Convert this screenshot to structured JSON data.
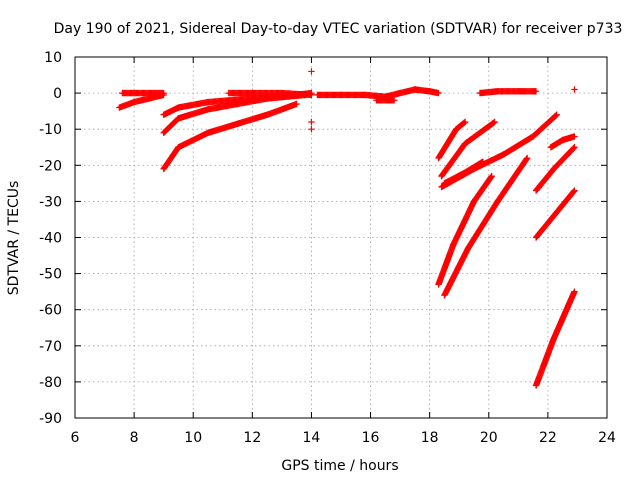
{
  "chart_data": {
    "type": "scatter",
    "title": "Day 190 of 2021, Sidereal Day-to-day VTEC variation (SDTVAR) for receiver p733",
    "xlabel": "GPS time / hours",
    "ylabel": "SDTVAR / TECUs",
    "xlim": [
      6,
      24
    ],
    "ylim": [
      -90,
      10
    ],
    "xticks": [
      6,
      8,
      10,
      12,
      14,
      16,
      18,
      20,
      22,
      24
    ],
    "yticks": [
      10,
      0,
      -10,
      -20,
      -30,
      -40,
      -50,
      -60,
      -70,
      -80,
      -90
    ],
    "grid": true,
    "marker": "plus",
    "color": "#ff0000",
    "segments": [
      [
        [
          7.5,
          -4
        ],
        [
          8.0,
          -2.5
        ],
        [
          8.5,
          -1.5
        ],
        [
          9.0,
          -0.5
        ]
      ],
      [
        [
          7.6,
          0
        ],
        [
          8.3,
          0
        ],
        [
          8.7,
          0
        ],
        [
          9.0,
          0
        ]
      ],
      [
        [
          9.0,
          -6
        ],
        [
          9.5,
          -4
        ],
        [
          10.5,
          -2.5
        ],
        [
          12.0,
          -1.5
        ],
        [
          13.5,
          -0.5
        ],
        [
          14.0,
          0
        ]
      ],
      [
        [
          9.0,
          -11
        ],
        [
          9.5,
          -7
        ],
        [
          10.5,
          -4.5
        ],
        [
          11.5,
          -3
        ],
        [
          12.5,
          -1.5
        ],
        [
          13.8,
          -0.5
        ]
      ],
      [
        [
          9.0,
          -21
        ],
        [
          9.5,
          -15
        ],
        [
          10.5,
          -11
        ],
        [
          11.5,
          -8.5
        ],
        [
          12.5,
          -6
        ],
        [
          13.5,
          -3
        ]
      ],
      [
        [
          11.2,
          0
        ],
        [
          12.0,
          0
        ],
        [
          13.0,
          0
        ],
        [
          14.0,
          -0.5
        ]
      ],
      [
        [
          14.2,
          -0.5
        ],
        [
          15.0,
          -0.5
        ],
        [
          15.8,
          -0.5
        ],
        [
          16.5,
          -1
        ],
        [
          17.0,
          0
        ],
        [
          17.5,
          1
        ],
        [
          18.0,
          0.5
        ],
        [
          18.3,
          0
        ]
      ],
      [
        [
          16.2,
          -2
        ],
        [
          16.8,
          -2
        ]
      ],
      [
        [
          19.7,
          0
        ],
        [
          20.3,
          0.5
        ],
        [
          21.0,
          0.5
        ],
        [
          21.6,
          0.5
        ]
      ],
      [
        [
          18.3,
          -53
        ],
        [
          18.8,
          -42
        ],
        [
          19.5,
          -30
        ],
        [
          20.1,
          -23
        ]
      ],
      [
        [
          18.5,
          -56
        ],
        [
          19.3,
          -43
        ],
        [
          20.3,
          -30
        ],
        [
          21.3,
          -18
        ]
      ],
      [
        [
          18.3,
          -18
        ],
        [
          18.9,
          -10
        ],
        [
          19.2,
          -8
        ]
      ],
      [
        [
          18.4,
          -23
        ],
        [
          19.2,
          -14
        ],
        [
          20.2,
          -8
        ]
      ],
      [
        [
          18.4,
          -26
        ],
        [
          19.5,
          -21
        ],
        [
          20.5,
          -17
        ],
        [
          21.5,
          -12
        ],
        [
          22.3,
          -6
        ]
      ],
      [
        [
          18.5,
          -25
        ],
        [
          19.2,
          -22
        ],
        [
          19.8,
          -19
        ]
      ],
      [
        [
          21.6,
          -40
        ],
        [
          22.2,
          -34
        ],
        [
          22.9,
          -27
        ]
      ],
      [
        [
          21.6,
          -27
        ],
        [
          22.2,
          -21
        ],
        [
          22.9,
          -15
        ]
      ],
      [
        [
          22.1,
          -15
        ],
        [
          22.5,
          -13
        ],
        [
          22.9,
          -12
        ]
      ],
      [
        [
          21.6,
          -81
        ],
        [
          22.2,
          -68
        ],
        [
          22.9,
          -55
        ]
      ]
    ],
    "isolated_points": [
      [
        14.0,
        6
      ],
      [
        14.0,
        -8
      ],
      [
        14.0,
        -10
      ],
      [
        22.9,
        1
      ]
    ]
  }
}
